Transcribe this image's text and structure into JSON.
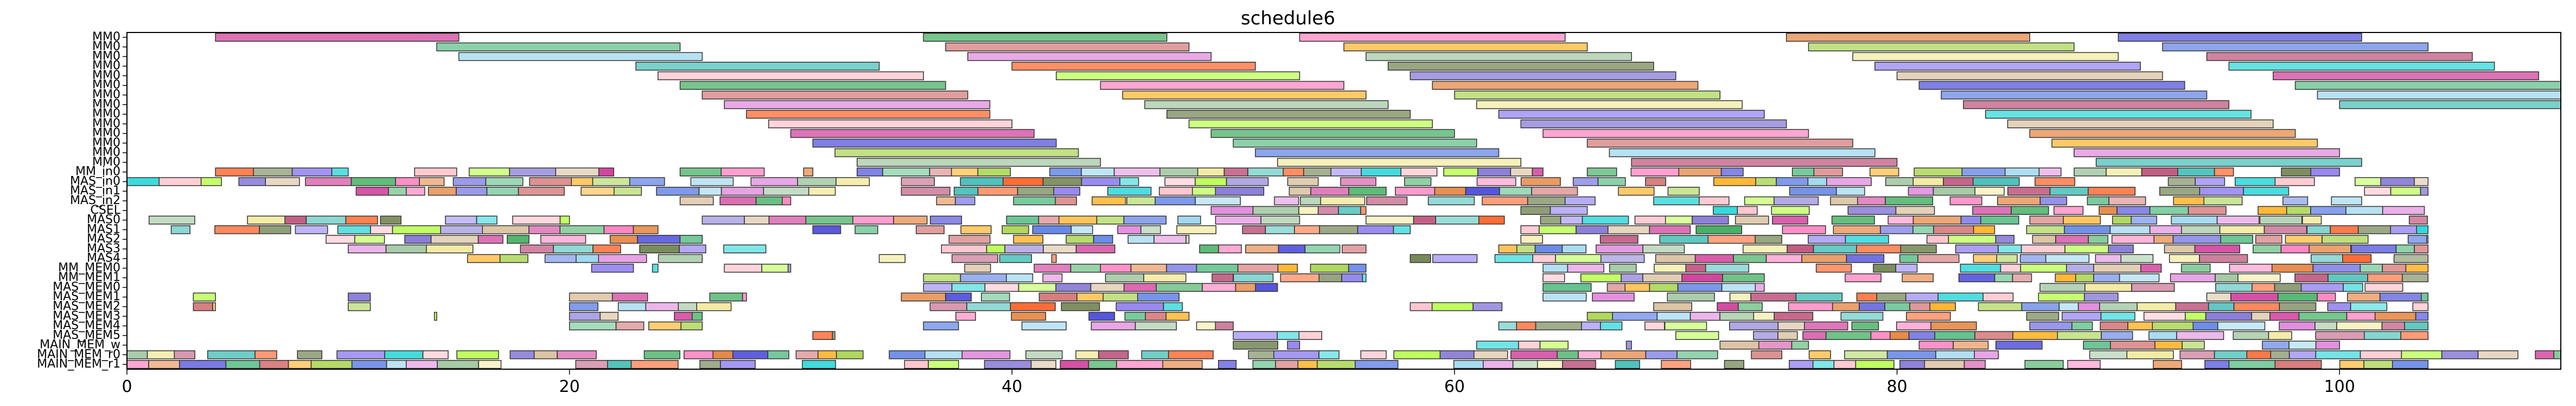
{
  "chart_data": {
    "type": "gantt",
    "title": "schedule6",
    "xlabel": "",
    "ylabel": "",
    "xlim": [
      0,
      110
    ],
    "xticks": [
      "0",
      "20",
      "40",
      "60",
      "80",
      "100"
    ],
    "xtick_values": [
      0,
      20,
      40,
      60,
      80,
      100
    ],
    "grid": false,
    "legend": "none",
    "rows": [
      "MM0",
      "MM0",
      "MM0",
      "MM0",
      "MM0",
      "MM0",
      "MM0",
      "MM0",
      "MM0",
      "MM0",
      "MM0",
      "MM0",
      "MM0",
      "MM0",
      "MM_in0",
      "MAS_in0",
      "MAS_in1",
      "MAS_in2",
      "CSEL",
      "MAS0",
      "MAS1",
      "MAS2",
      "MAS3",
      "MAS4",
      "MM_MEM0",
      "MM_MEM1",
      "MAS_MEM0",
      "MAS_MEM1",
      "MAS_MEM2",
      "MAS_MEM3",
      "MAS_MEM4",
      "MAS_MEM5",
      "MAIN_MEM_w",
      "MAIN_MEM_r0",
      "MAIN_MEM_r1"
    ],
    "palette": [
      "#c71585",
      "#1a9e3f",
      "#ff69b4",
      "#e06c1a",
      "#2a2ad4",
      "#3cb371",
      "#cd5c5c",
      "#ffa500",
      "#9acd32",
      "#4169e1",
      "#87ceeb",
      "#da70d6",
      "#8fbc8f",
      "#f0e68c",
      "#b03060",
      "#20b2aa",
      "#ff4500",
      "#556b2f",
      "#7b68ee",
      "#00ced1",
      "#ffb6c1",
      "#adff2f",
      "#6a5acd",
      "#d2b48c"
    ],
    "mm_tasks": [
      [
        0,
        4,
        15
      ],
      [
        0,
        36,
        47
      ],
      [
        0,
        53,
        65
      ],
      [
        0,
        75,
        86
      ],
      [
        0,
        90,
        101
      ],
      [
        1,
        14,
        25
      ],
      [
        1,
        37,
        48
      ],
      [
        1,
        55,
        66
      ],
      [
        1,
        76,
        88
      ],
      [
        1,
        92,
        104
      ],
      [
        2,
        15,
        26
      ],
      [
        2,
        38,
        49
      ],
      [
        2,
        56,
        68
      ],
      [
        2,
        78,
        90
      ],
      [
        2,
        94,
        106
      ],
      [
        3,
        23,
        34
      ],
      [
        3,
        40,
        51
      ],
      [
        3,
        57,
        69
      ],
      [
        3,
        79,
        91
      ],
      [
        3,
        95,
        107
      ],
      [
        4,
        24,
        36
      ],
      [
        4,
        42,
        53
      ],
      [
        4,
        58,
        70
      ],
      [
        4,
        80,
        92
      ],
      [
        4,
        97,
        109
      ],
      [
        5,
        25,
        37
      ],
      [
        5,
        44,
        55
      ],
      [
        5,
        59,
        71
      ],
      [
        5,
        81,
        93
      ],
      [
        5,
        98,
        110
      ],
      [
        6,
        26,
        38
      ],
      [
        6,
        45,
        56
      ],
      [
        6,
        60,
        72
      ],
      [
        6,
        82,
        94
      ],
      [
        6,
        99,
        110
      ],
      [
        7,
        27,
        39
      ],
      [
        7,
        46,
        57
      ],
      [
        7,
        61,
        73
      ],
      [
        7,
        83,
        95
      ],
      [
        7,
        100,
        110
      ],
      [
        8,
        28,
        39
      ],
      [
        8,
        47,
        58
      ],
      [
        8,
        62,
        74
      ],
      [
        8,
        84,
        96
      ],
      [
        9,
        29,
        40
      ],
      [
        9,
        48,
        59
      ],
      [
        9,
        63,
        75
      ],
      [
        9,
        85,
        97
      ],
      [
        10,
        30,
        41
      ],
      [
        10,
        49,
        60
      ],
      [
        10,
        64,
        76
      ],
      [
        10,
        86,
        98
      ],
      [
        11,
        31,
        42
      ],
      [
        11,
        50,
        61
      ],
      [
        11,
        66,
        78
      ],
      [
        11,
        87,
        99
      ],
      [
        12,
        32,
        43
      ],
      [
        12,
        51,
        62
      ],
      [
        12,
        67,
        79
      ],
      [
        12,
        88,
        100
      ],
      [
        13,
        33,
        44
      ],
      [
        13,
        52,
        63
      ],
      [
        13,
        68,
        80
      ],
      [
        13,
        89,
        101
      ]
    ]
  }
}
